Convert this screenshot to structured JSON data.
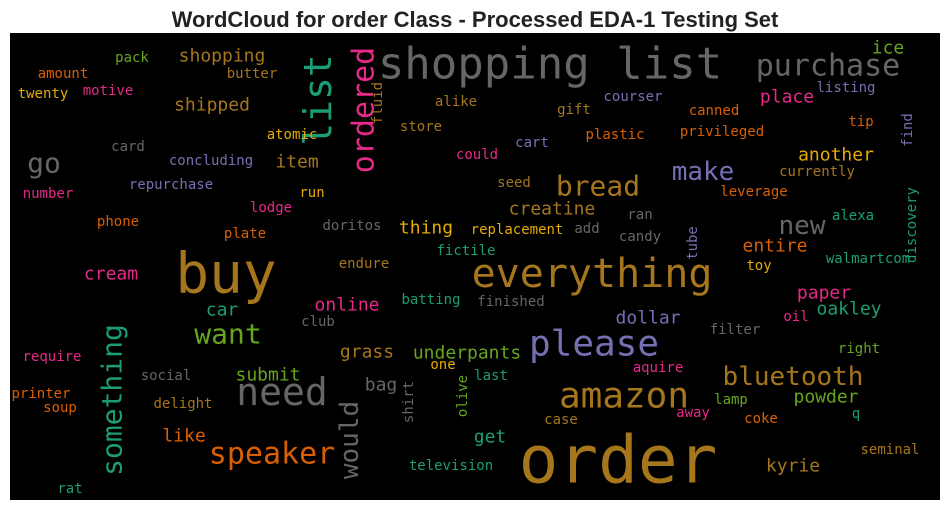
{
  "chart_data": {
    "type": "wordcloud",
    "title": "WordCloud for order Class - Processed EDA-1 Testing Set",
    "background": "#000000",
    "words": [
      {
        "text": "shopping list",
        "color": "#666666"
      },
      {
        "text": "purchase",
        "color": "#666666"
      },
      {
        "text": "order",
        "color": "#a6761d"
      },
      {
        "text": "buy",
        "color": "#a6761d"
      },
      {
        "text": "everything",
        "color": "#a6761d"
      },
      {
        "text": "please",
        "color": "#7570b3"
      },
      {
        "text": "amazon",
        "color": "#a6761d"
      },
      {
        "text": "need",
        "color": "#666666"
      },
      {
        "text": "speaker",
        "color": "#d95f02"
      },
      {
        "text": "want",
        "color": "#66a61e"
      },
      {
        "text": "bread",
        "color": "#a6761d"
      },
      {
        "text": "list",
        "color": "#1b9e77"
      },
      {
        "text": "ordered",
        "color": "#e7298a"
      },
      {
        "text": "something",
        "color": "#1b9e77"
      },
      {
        "text": "would",
        "color": "#666666"
      },
      {
        "text": "go",
        "color": "#666666"
      },
      {
        "text": "make",
        "color": "#7570b3"
      },
      {
        "text": "new",
        "color": "#666666"
      },
      {
        "text": "bluetooth",
        "color": "#a6761d"
      },
      {
        "text": "creatine",
        "color": "#a6761d"
      },
      {
        "text": "shopping",
        "color": "#a6761d"
      },
      {
        "text": "shipped",
        "color": "#a6761d"
      },
      {
        "text": "item",
        "color": "#a6761d"
      },
      {
        "text": "place",
        "color": "#e7298a"
      },
      {
        "text": "ice",
        "color": "#66a61e"
      },
      {
        "text": "another",
        "color": "#e6ab02"
      },
      {
        "text": "entire",
        "color": "#d95f02"
      },
      {
        "text": "toy",
        "color": "#e6ab02"
      },
      {
        "text": "paper",
        "color": "#e7298a"
      },
      {
        "text": "oakley",
        "color": "#1b9e77"
      },
      {
        "text": "oil",
        "color": "#e7298a"
      },
      {
        "text": "alexa",
        "color": "#1b9e77"
      },
      {
        "text": "walmartcom",
        "color": "#1b9e77"
      },
      {
        "text": "discovery",
        "color": "#1b9e77"
      },
      {
        "text": "find",
        "color": "#7570b3"
      },
      {
        "text": "listing",
        "color": "#7570b3"
      },
      {
        "text": "tip",
        "color": "#d95f02"
      },
      {
        "text": "privileged",
        "color": "#d95f02"
      },
      {
        "text": "canned",
        "color": "#d95f02"
      },
      {
        "text": "currently",
        "color": "#a6761d"
      },
      {
        "text": "leverage",
        "color": "#d95f02"
      },
      {
        "text": "dollar",
        "color": "#7570b3"
      },
      {
        "text": "filter",
        "color": "#666666"
      },
      {
        "text": "right",
        "color": "#66a61e"
      },
      {
        "text": "powder",
        "color": "#66a61e"
      },
      {
        "text": "q",
        "color": "#1b9e77"
      },
      {
        "text": "lamp",
        "color": "#66a61e"
      },
      {
        "text": "coke",
        "color": "#d95f02"
      },
      {
        "text": "seminal",
        "color": "#a6761d"
      },
      {
        "text": "kyrie",
        "color": "#a6761d"
      },
      {
        "text": "away",
        "color": "#e7298a"
      },
      {
        "text": "aquire",
        "color": "#e7298a"
      },
      {
        "text": "case",
        "color": "#a6761d"
      },
      {
        "text": "olive",
        "color": "#66a61e"
      },
      {
        "text": "shirt",
        "color": "#666666"
      },
      {
        "text": "last",
        "color": "#1b9e77"
      },
      {
        "text": "one",
        "color": "#e6ab02"
      },
      {
        "text": "bag",
        "color": "#666666"
      },
      {
        "text": "underpants",
        "color": "#66a61e"
      },
      {
        "text": "grass",
        "color": "#a6761d"
      },
      {
        "text": "submit",
        "color": "#66a61e"
      },
      {
        "text": "social",
        "color": "#666666"
      },
      {
        "text": "delight",
        "color": "#a6761d"
      },
      {
        "text": "like",
        "color": "#d95f02"
      },
      {
        "text": "get",
        "color": "#1b9e77"
      },
      {
        "text": "television",
        "color": "#1b9e77"
      },
      {
        "text": "online",
        "color": "#e7298a"
      },
      {
        "text": "car",
        "color": "#1b9e77"
      },
      {
        "text": "club",
        "color": "#666666"
      },
      {
        "text": "batting",
        "color": "#1b9e77"
      },
      {
        "text": "finished",
        "color": "#666666"
      },
      {
        "text": "endure",
        "color": "#a6761d"
      },
      {
        "text": "fictile",
        "color": "#1b9e77"
      },
      {
        "text": "replacement",
        "color": "#e6ab02"
      },
      {
        "text": "thing",
        "color": "#e6ab02"
      },
      {
        "text": "add",
        "color": "#666666"
      },
      {
        "text": "candy",
        "color": "#666666"
      },
      {
        "text": "ran",
        "color": "#666666"
      },
      {
        "text": "tube",
        "color": "#7570b3"
      },
      {
        "text": "doritos",
        "color": "#666666"
      },
      {
        "text": "seed",
        "color": "#a6761d"
      },
      {
        "text": "could",
        "color": "#e7298a"
      },
      {
        "text": "cart",
        "color": "#7570b3"
      },
      {
        "text": "plastic",
        "color": "#d95f02"
      },
      {
        "text": "gift",
        "color": "#a6761d"
      },
      {
        "text": "courser",
        "color": "#7570b3"
      },
      {
        "text": "alike",
        "color": "#a6761d"
      },
      {
        "text": "store",
        "color": "#a6761d"
      },
      {
        "text": "fluid",
        "color": "#a6761d"
      },
      {
        "text": "atomic",
        "color": "#e6ab02"
      },
      {
        "text": "butter",
        "color": "#a6761d"
      },
      {
        "text": "concluding",
        "color": "#7570b3"
      },
      {
        "text": "run",
        "color": "#e6ab02"
      },
      {
        "text": "lodge",
        "color": "#e7298a"
      },
      {
        "text": "plate",
        "color": "#d95f02"
      },
      {
        "text": "card",
        "color": "#666666"
      },
      {
        "text": "repurchase",
        "color": "#7570b3"
      },
      {
        "text": "phone",
        "color": "#d95f02"
      },
      {
        "text": "cream",
        "color": "#e7298a"
      },
      {
        "text": "number",
        "color": "#e7298a"
      },
      {
        "text": "pack",
        "color": "#66a61e"
      },
      {
        "text": "amount",
        "color": "#d95f02"
      },
      {
        "text": "motive",
        "color": "#e7298a"
      },
      {
        "text": "twenty",
        "color": "#e6ab02"
      },
      {
        "text": "require",
        "color": "#e7298a"
      },
      {
        "text": "printer",
        "color": "#d95f02"
      },
      {
        "text": "soup",
        "color": "#d95f02"
      },
      {
        "text": "rat",
        "color": "#1b9e77"
      }
    ]
  }
}
